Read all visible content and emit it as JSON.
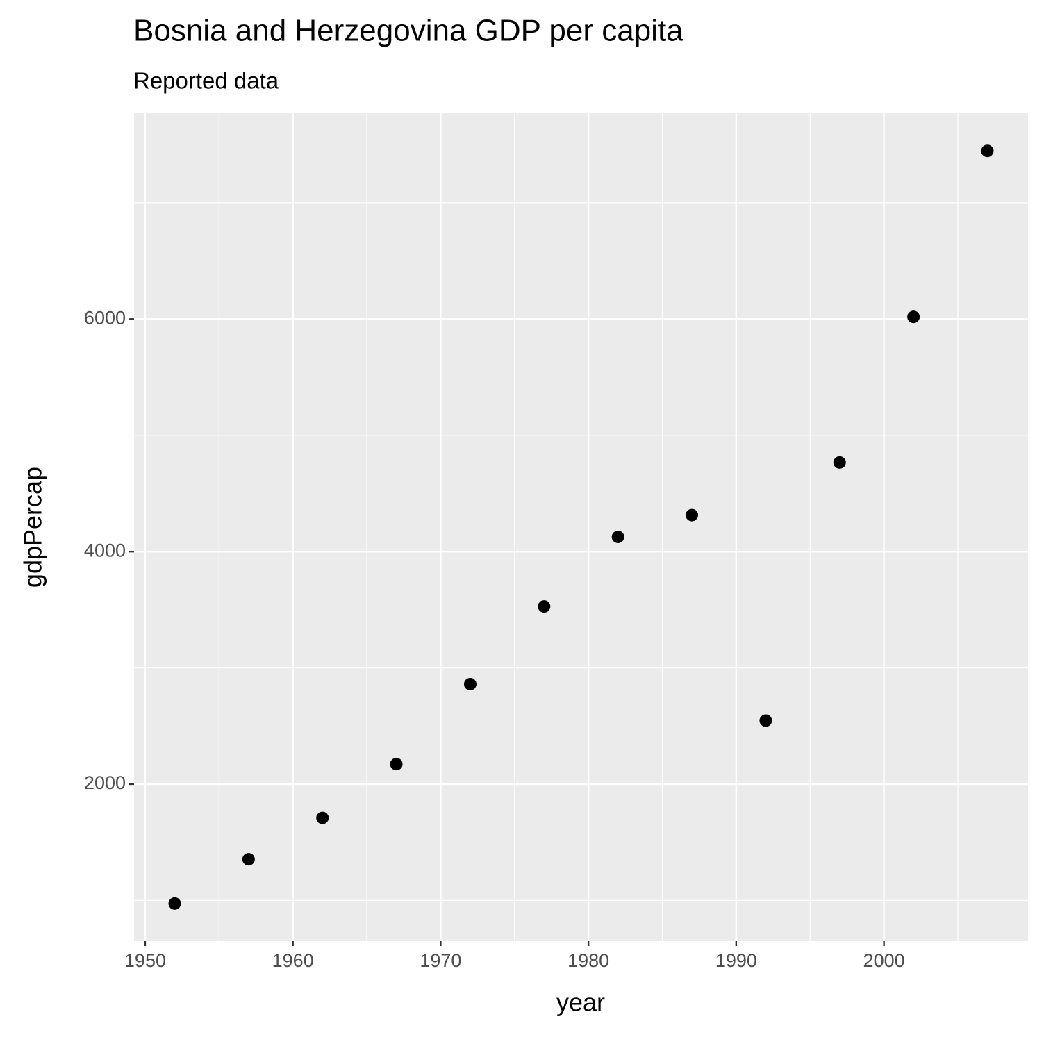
{
  "chart_data": {
    "type": "scatter",
    "title": "Bosnia and Herzegovina GDP per capita",
    "subtitle": "Reported data",
    "x_label": "year",
    "y_label": "gdpPercap",
    "x": [
      1952,
      1957,
      1962,
      1967,
      1972,
      1977,
      1982,
      1987,
      1992,
      1997,
      2002,
      2007
    ],
    "values": [
      973.5,
      1354,
      1709.7,
      2172.4,
      2860.2,
      3528.5,
      4126.6,
      4314.1,
      2546.8,
      4766.4,
      6019,
      7446.3
    ],
    "color": "#000000",
    "xlim": [
      1949.25,
      2009.75
    ],
    "ylim": [
      650,
      7770
    ],
    "xticks": [
      1950,
      1960,
      1970,
      1980,
      1990,
      2000
    ],
    "yticks": [
      2000,
      4000,
      6000
    ],
    "grid": true
  }
}
